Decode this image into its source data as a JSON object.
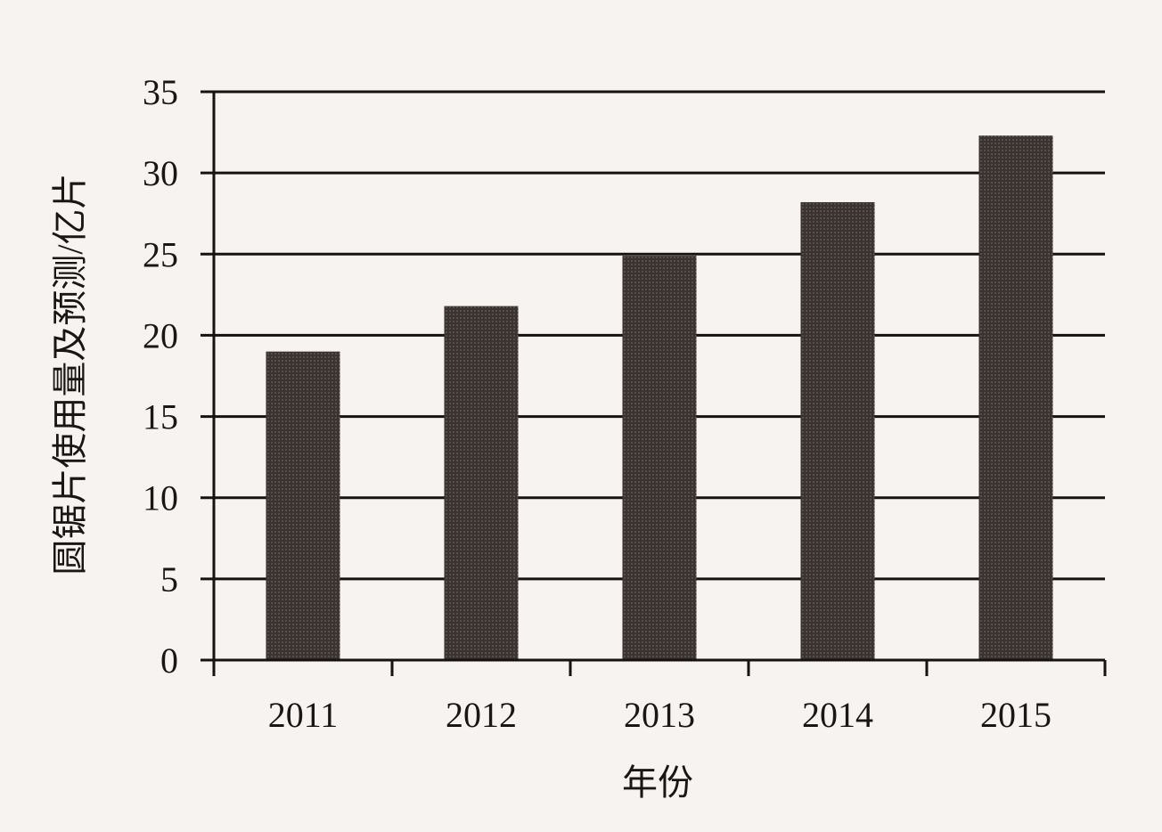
{
  "chart_data": {
    "type": "bar",
    "title": "",
    "xlabel": "年份",
    "ylabel": "圆锯片使用量及预测/亿片",
    "categories": [
      "2011",
      "2012",
      "2013",
      "2014",
      "2015"
    ],
    "values": [
      19.0,
      21.8,
      24.9,
      28.2,
      32.3
    ],
    "ylim": [
      0,
      35
    ],
    "yticks": [
      0,
      5,
      10,
      15,
      20,
      25,
      30,
      35
    ],
    "grid": true,
    "legend": "none",
    "bar_color": "#3a3330"
  }
}
